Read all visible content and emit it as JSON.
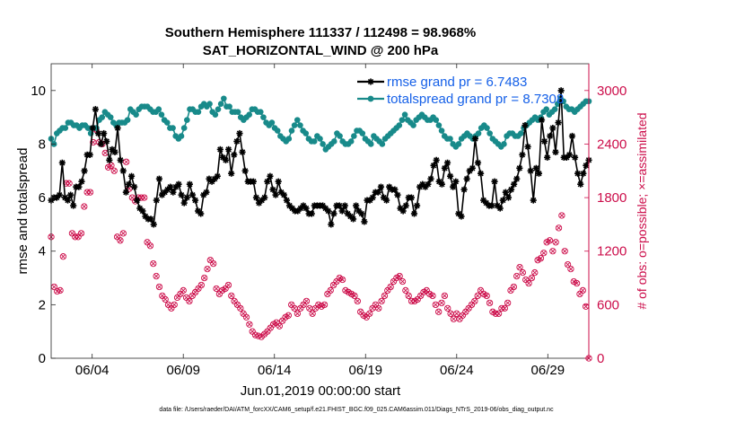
{
  "chart_data": {
    "type": "line",
    "title": "Southern Hemisphere 111337 / 112498 = 98.968%",
    "subtitle": "SAT_HORIZONTAL_WIND @ 200 hPa",
    "xlabel": "Jun.01,2019 00:00:00 start",
    "ylabel": "rmse and totalspread",
    "ylabel_right": "# of obs: o=possible; ×=assimilated",
    "x_ticks": [
      "06/04",
      "06/09",
      "06/14",
      "06/19",
      "06/24",
      "06/29"
    ],
    "x_tick_days": [
      4,
      9,
      14,
      19,
      24,
      29
    ],
    "x_range_days": [
      1.75,
      31.25
    ],
    "ylim": [
      0,
      11
    ],
    "y_ticks": [
      0,
      2,
      4,
      6,
      8,
      10
    ],
    "ylim_right": [
      0,
      3300
    ],
    "y_ticks_right": [
      0,
      600,
      1200,
      1800,
      2400,
      3000
    ],
    "legend": [
      "rmse grand pr = 6.7483",
      "totalspread grand pr = 8.7308"
    ],
    "legend_position": "top-right",
    "colors": {
      "rmse": "#000000",
      "spread": "#188a8a",
      "obs": "#cc0d4a"
    },
    "footnote": "data file: /Users/raeder/DAI/ATM_forcXX/CAM6_setup/f.e21.FHIST_BGC.f09_025.CAM6assim.011/Diags_NTrS_2019-06/obs_diag_output.nc",
    "series": [
      {
        "name": "rmse",
        "type": "line-marker",
        "values": [
          5.9,
          6.0,
          6.0,
          6.1,
          7.3,
          6.0,
          5.9,
          6.1,
          5.7,
          6.4,
          6.4,
          6.6,
          7.0,
          7.6,
          7.6,
          8.6,
          9.3,
          8.4,
          8.0,
          8.4,
          8.1,
          7.4,
          7.8,
          7.7,
          8.6,
          7.4,
          7.0,
          6.2,
          6.5,
          6.8,
          6.4,
          5.9,
          5.6,
          5.5,
          5.3,
          5.2,
          5.2,
          5.0,
          5.9,
          6.7,
          6.1,
          6.2,
          6.3,
          6.4,
          6.2,
          6.4,
          6.5,
          6.1,
          5.8,
          6.0,
          6.5,
          6.1,
          5.9,
          5.5,
          5.4,
          6.1,
          6.2,
          6.7,
          6.6,
          6.7,
          6.8,
          7.8,
          7.5,
          7.4,
          7.8,
          6.9,
          7.6,
          8.1,
          8.4,
          7.7,
          7.0,
          6.6,
          6.6,
          6.6,
          6.0,
          5.8,
          5.9,
          6.0,
          6.6,
          6.8,
          6.3,
          6.1,
          6.6,
          6.2,
          6.1,
          5.9,
          5.7,
          5.6,
          5.5,
          5.5,
          5.6,
          5.7,
          5.6,
          5.4,
          5.4,
          5.7,
          5.7,
          5.7,
          5.7,
          5.6,
          5.5,
          5.0,
          5.4,
          5.7,
          5.7,
          5.5,
          5.7,
          5.4,
          5.3,
          5.2,
          5.7,
          5.5,
          5.4,
          5.1,
          5.9,
          5.9,
          6.0,
          6.2,
          6.2,
          6.4,
          6.0,
          5.9,
          6.4,
          6.3,
          6.3,
          6.1,
          5.6,
          5.5,
          5.7,
          6.0,
          6.0,
          5.4,
          5.7,
          6.4,
          6.5,
          6.4,
          6.5,
          6.7,
          7.2,
          7.4,
          6.6,
          6.5,
          7.1,
          7.3,
          6.8,
          6.4,
          6.6,
          5.4,
          5.3,
          6.3,
          6.7,
          7.0,
          7.1,
          8.2,
          7.3,
          6.9,
          5.9,
          5.8,
          5.7,
          5.7,
          6.6,
          5.7,
          5.6,
          5.9,
          6.2,
          6.0,
          6.3,
          6.5,
          6.7,
          7.1,
          7.6,
          8.7,
          7.9,
          7.0,
          5.9,
          7.1,
          6.9,
          8.9,
          8.1,
          7.5,
          8.3,
          8.6,
          7.7,
          8.8,
          10.0,
          7.5,
          7.5,
          7.6,
          8.3,
          7.5,
          6.9,
          6.5,
          6.9,
          7.2,
          7.4
        ]
      },
      {
        "name": "totalspread",
        "type": "line-marker",
        "values": [
          8.2,
          8.0,
          8.4,
          8.5,
          8.6,
          8.6,
          8.8,
          8.8,
          8.7,
          8.7,
          8.6,
          8.7,
          8.7,
          8.6,
          8.4,
          8.6,
          8.6,
          8.9,
          9.0,
          9.2,
          9.1,
          9.0,
          8.8,
          8.7,
          8.8,
          8.8,
          8.8,
          8.9,
          9.3,
          9.2,
          9.1,
          9.3,
          9.4,
          9.4,
          9.4,
          9.3,
          9.2,
          9.2,
          9.3,
          9.1,
          8.9,
          8.8,
          8.6,
          8.6,
          8.3,
          8.2,
          8.3,
          8.6,
          8.9,
          9.3,
          9.3,
          9.2,
          9.2,
          9.4,
          9.5,
          9.4,
          9.5,
          9.2,
          9.1,
          9.3,
          9.5,
          9.7,
          9.4,
          9.4,
          9.2,
          9.2,
          9.2,
          9.0,
          8.9,
          9.0,
          9.1,
          9.3,
          9.3,
          9.2,
          9.2,
          9.0,
          8.8,
          8.7,
          8.8,
          8.6,
          8.5,
          8.3,
          8.2,
          8.1,
          8.2,
          8.5,
          8.7,
          8.9,
          8.7,
          8.5,
          8.4,
          8.2,
          8.1,
          8.1,
          8.3,
          8.2,
          8.0,
          7.8,
          7.9,
          8.0,
          8.1,
          8.4,
          8.3,
          8.1,
          8.0,
          8.0,
          8.1,
          8.3,
          8.5,
          8.5,
          8.4,
          8.2,
          8.1,
          8.0,
          8.3,
          8.2,
          8.1,
          8.0,
          8.2,
          8.3,
          8.4,
          8.5,
          8.6,
          8.7,
          8.9,
          9.1,
          8.9,
          8.8,
          8.7,
          8.9,
          9.0,
          9.1,
          9.0,
          8.9,
          8.9,
          9.0,
          8.9,
          8.7,
          8.5,
          8.3,
          8.2,
          8.2,
          8.0,
          7.9,
          8.0,
          8.2,
          8.3,
          8.4,
          8.3,
          8.2,
          8.3,
          8.4,
          8.6,
          8.7,
          8.6,
          8.4,
          8.2,
          8.1,
          8.0,
          7.9,
          8.0,
          8.3,
          8.4,
          8.4,
          8.3,
          8.3,
          8.4,
          8.6,
          8.7,
          8.8,
          8.9,
          9.0,
          8.9,
          9.0,
          9.2,
          9.3,
          9.1,
          9.2,
          9.3,
          9.5,
          9.7,
          9.6,
          9.4,
          9.3,
          9.3,
          9.2,
          9.3,
          9.4,
          9.5,
          9.6,
          9.6
        ]
      },
      {
        "name": "obs_possible",
        "type": "scatter",
        "values": [
          1360,
          800,
          750,
          760,
          1140,
          1960,
          1960,
          1400,
          1360,
          1360,
          1400,
          1700,
          1860,
          1860,
          2420,
          2560,
          2420,
          2400,
          2300,
          2140,
          2160,
          2100,
          1360,
          1320,
          1400,
          2200,
          1900,
          1800,
          1760,
          1800,
          1800,
          1800,
          1300,
          1260,
          1060,
          920,
          800,
          700,
          660,
          600,
          560,
          600,
          680,
          720,
          760,
          680,
          640,
          700,
          740,
          780,
          820,
          900,
          1000,
          1100,
          1060,
          780,
          720,
          760,
          780,
          820,
          700,
          640,
          600,
          560,
          500,
          460,
          380,
          300,
          260,
          250,
          240,
          270,
          300,
          340,
          380,
          400,
          360,
          420,
          460,
          480,
          600,
          560,
          500,
          560,
          600,
          640,
          560,
          500,
          560,
          600,
          580,
          600,
          720,
          760,
          820,
          860,
          900,
          880,
          760,
          740,
          720,
          700,
          640,
          520,
          480,
          460,
          500,
          560,
          600,
          560,
          640,
          700,
          760,
          800,
          860,
          900,
          920,
          860,
          760,
          700,
          640,
          640,
          660,
          700,
          740,
          760,
          720,
          700,
          600,
          520,
          620,
          700,
          560,
          500,
          440,
          500,
          440,
          480,
          520,
          560,
          600,
          640,
          700,
          760,
          720,
          700,
          620,
          520,
          500,
          500,
          560,
          560,
          620,
          760,
          800,
          920,
          1020,
          960,
          880,
          840,
          900,
          960,
          1100,
          1120,
          1180,
          1300,
          1320,
          1200,
          1300,
          1460,
          1600,
          1200,
          1050,
          1000,
          860,
          840,
          720,
          760,
          580,
          0
        ]
      },
      {
        "name": "obs_assimilated",
        "type": "scatter",
        "values": [
          1360,
          800,
          750,
          760,
          1140,
          1960,
          1960,
          1400,
          1360,
          1360,
          1400,
          1700,
          1860,
          1860,
          2420,
          2560,
          2420,
          2400,
          2300,
          2140,
          2160,
          2100,
          1360,
          1320,
          1400,
          2200,
          1900,
          1800,
          1760,
          1800,
          1800,
          1800,
          1300,
          1260,
          1060,
          920,
          800,
          700,
          660,
          600,
          560,
          600,
          680,
          720,
          760,
          680,
          640,
          700,
          740,
          780,
          820,
          900,
          1000,
          1100,
          1060,
          780,
          720,
          760,
          780,
          820,
          700,
          640,
          600,
          560,
          500,
          460,
          380,
          300,
          260,
          250,
          240,
          270,
          300,
          340,
          380,
          400,
          360,
          420,
          460,
          480,
          600,
          560,
          500,
          560,
          600,
          640,
          560,
          500,
          560,
          600,
          580,
          600,
          720,
          760,
          820,
          860,
          900,
          880,
          760,
          740,
          720,
          700,
          640,
          520,
          480,
          460,
          500,
          560,
          600,
          560,
          640,
          700,
          760,
          800,
          860,
          900,
          920,
          860,
          760,
          700,
          640,
          640,
          660,
          700,
          740,
          760,
          720,
          700,
          600,
          520,
          620,
          700,
          560,
          500,
          440,
          500,
          440,
          480,
          520,
          560,
          600,
          640,
          700,
          760,
          720,
          700,
          620,
          520,
          500,
          500,
          560,
          560,
          620,
          760,
          800,
          920,
          1020,
          960,
          880,
          840,
          900,
          960,
          1100,
          1120,
          1180,
          1300,
          1320,
          1200,
          1300,
          1460,
          1600,
          1200,
          1050,
          1000,
          860,
          840,
          720,
          760,
          580,
          0
        ]
      }
    ]
  }
}
